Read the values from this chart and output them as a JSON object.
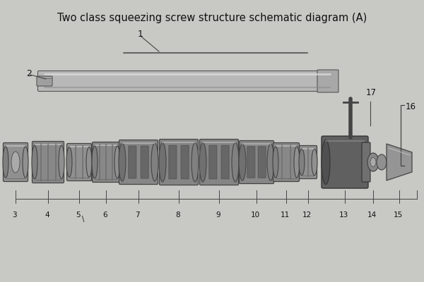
{
  "title": "Two class squeezing screw structure schematic diagram (A)",
  "bg": "#c8c8c4",
  "title_color": "#111111",
  "title_fontsize": 10.5,
  "lc": "#444444",
  "label_color": "#111111",
  "bottom_labels": [
    "3",
    "4",
    "5",
    "6",
    "7",
    "8",
    "9",
    "10",
    "11",
    "12",
    "13",
    "14",
    "15"
  ],
  "shaft_gray": "#aaaaaa",
  "screw_gray": "#888888",
  "dark_gray": "#555555",
  "light_gray": "#cccccc",
  "very_dark": "#404040"
}
